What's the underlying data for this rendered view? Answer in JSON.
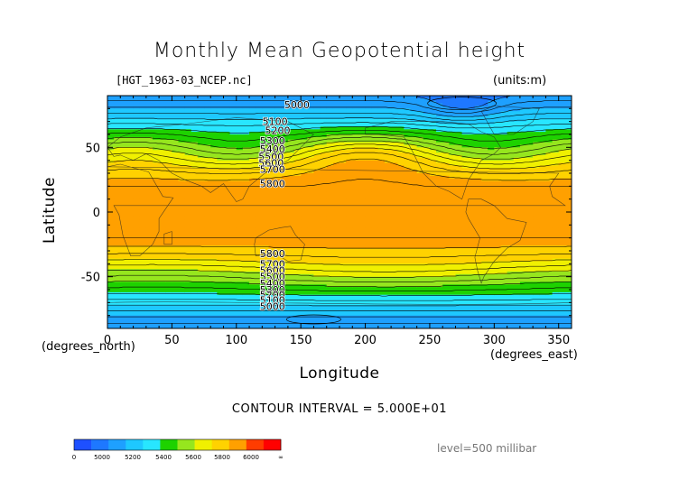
{
  "title": "Monthly Mean Geopotential height",
  "file_label": "[HGT_1963-03_NCEP.nc]",
  "units_label": "(units:m)",
  "contour_interval_label": "CONTOUR INTERVAL = 5.000E+01",
  "level_label": "level=500 millibar",
  "x_unit_note": "(degrees_north)",
  "x_unit": "(degrees_east)",
  "chart_data": {
    "type": "heatmap",
    "title": "Monthly Mean Geopotential height",
    "xlabel": "Longitude",
    "ylabel": "Latitude",
    "xlim": [
      0,
      360
    ],
    "ylim": [
      -90,
      90
    ],
    "x_ticks": [
      0,
      50,
      100,
      150,
      200,
      250,
      300,
      350
    ],
    "y_ticks": [
      50,
      0,
      -50
    ],
    "contour_labels": [
      {
        "lon": 147,
        "lat": 83,
        "text": "5000"
      },
      {
        "lon": 130,
        "lat": 70,
        "text": "5100"
      },
      {
        "lon": 132,
        "lat": 63,
        "text": "5200"
      },
      {
        "lon": 128,
        "lat": 55,
        "text": "5300"
      },
      {
        "lon": 128,
        "lat": 49,
        "text": "5400"
      },
      {
        "lon": 127,
        "lat": 43,
        "text": "5500"
      },
      {
        "lon": 127,
        "lat": 38,
        "text": "5600"
      },
      {
        "lon": 128,
        "lat": 33,
        "text": "5700"
      },
      {
        "lon": 128,
        "lat": 22,
        "text": "5800"
      },
      {
        "lon": 128,
        "lat": -32,
        "text": "5800"
      },
      {
        "lon": 128,
        "lat": -40,
        "text": "5700"
      },
      {
        "lon": 128,
        "lat": -45,
        "text": "5600"
      },
      {
        "lon": 128,
        "lat": -50,
        "text": "5500"
      },
      {
        "lon": 128,
        "lat": -55,
        "text": "5400"
      },
      {
        "lon": 128,
        "lat": -60,
        "text": "5300"
      },
      {
        "lon": 128,
        "lat": -64,
        "text": "5200"
      },
      {
        "lon": 128,
        "lat": -68,
        "text": "5100"
      },
      {
        "lon": 128,
        "lat": -73,
        "text": "5000"
      }
    ],
    "colorbar": {
      "labels": [
        "0",
        "5000",
        "5200",
        "5400",
        "5600",
        "5800",
        "6000",
        "∞"
      ],
      "colors": [
        "#1e50ff",
        "#1e78ff",
        "#1ea0ff",
        "#1ec8ff",
        "#28e6ff",
        "#1ed200",
        "#96e61e",
        "#f0f000",
        "#ffd200",
        "#ffa000",
        "#ff3c00",
        "#ff0000"
      ]
    }
  }
}
